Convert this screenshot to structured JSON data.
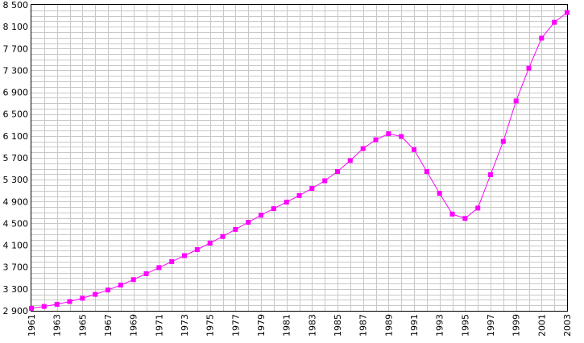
{
  "chart_data": {
    "type": "line",
    "title": "",
    "xlabel": "",
    "ylabel": "",
    "xlim": [
      1961,
      2003
    ],
    "ylim": [
      2900,
      8500
    ],
    "grid": true,
    "legend": "none",
    "y_ticks": [
      {
        "value": 2900,
        "label": "2 900"
      },
      {
        "value": 3300,
        "label": "3 300"
      },
      {
        "value": 3700,
        "label": "3 700"
      },
      {
        "value": 4100,
        "label": "4 100"
      },
      {
        "value": 4500,
        "label": "4 500"
      },
      {
        "value": 4900,
        "label": "4 900"
      },
      {
        "value": 5300,
        "label": "5 300"
      },
      {
        "value": 5700,
        "label": "5 700"
      },
      {
        "value": 6100,
        "label": "6 100"
      },
      {
        "value": 6500,
        "label": "6 500"
      },
      {
        "value": 6900,
        "label": "6 900"
      },
      {
        "value": 7300,
        "label": "7 300"
      },
      {
        "value": 7700,
        "label": "7 700"
      },
      {
        "value": 8100,
        "label": "8 100"
      },
      {
        "value": 8500,
        "label": "8 500"
      }
    ],
    "x_ticks": [
      {
        "value": 1961,
        "label": "1961"
      },
      {
        "value": 1963,
        "label": "1963"
      },
      {
        "value": 1965,
        "label": "1965"
      },
      {
        "value": 1967,
        "label": "1967"
      },
      {
        "value": 1969,
        "label": "1969"
      },
      {
        "value": 1971,
        "label": "1971"
      },
      {
        "value": 1973,
        "label": "1973"
      },
      {
        "value": 1975,
        "label": "1975"
      },
      {
        "value": 1977,
        "label": "1977"
      },
      {
        "value": 1979,
        "label": "1979"
      },
      {
        "value": 1981,
        "label": "1981"
      },
      {
        "value": 1983,
        "label": "1983"
      },
      {
        "value": 1985,
        "label": "1985"
      },
      {
        "value": 1987,
        "label": "1987"
      },
      {
        "value": 1989,
        "label": "1989"
      },
      {
        "value": 1991,
        "label": "1991"
      },
      {
        "value": 1993,
        "label": "1993"
      },
      {
        "value": 1995,
        "label": "1995"
      },
      {
        "value": 1997,
        "label": "1997"
      },
      {
        "value": 1999,
        "label": "1999"
      },
      {
        "value": 2001,
        "label": "2001"
      },
      {
        "value": 2003,
        "label": "2003"
      }
    ],
    "series": [
      {
        "color": "#ff00ff",
        "marker": "square",
        "x": [
          1961,
          1962,
          1963,
          1964,
          1965,
          1966,
          1967,
          1968,
          1969,
          1970,
          1971,
          1972,
          1973,
          1974,
          1975,
          1976,
          1977,
          1978,
          1979,
          1980,
          1981,
          1982,
          1983,
          1984,
          1985,
          1986,
          1987,
          1988,
          1989,
          1990,
          1991,
          1992,
          1993,
          1994,
          1995,
          1996,
          1997,
          1998,
          1999,
          2000,
          2001,
          2002,
          2003
        ],
        "y": [
          2945,
          2980,
          3020,
          3070,
          3130,
          3200,
          3280,
          3370,
          3470,
          3580,
          3690,
          3800,
          3910,
          4020,
          4140,
          4260,
          4390,
          4520,
          4650,
          4770,
          4890,
          5010,
          5140,
          5280,
          5450,
          5650,
          5870,
          6030,
          6140,
          6090,
          5850,
          5450,
          5050,
          4670,
          4590,
          4780,
          5390,
          6000,
          6740,
          7340,
          7890,
          8180,
          8360
        ]
      }
    ]
  }
}
